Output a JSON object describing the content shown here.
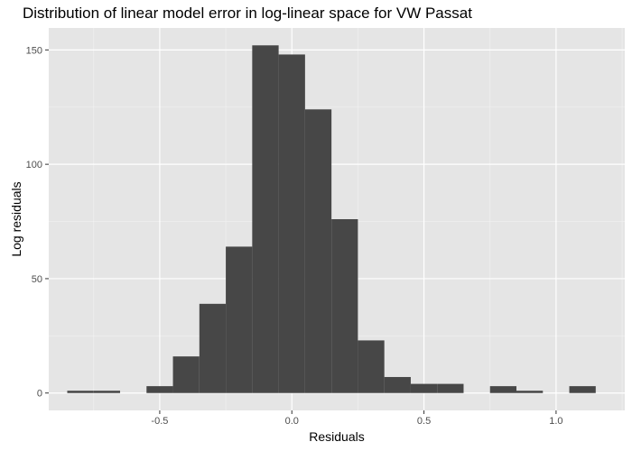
{
  "chart_data": {
    "type": "bar",
    "title": "Distribution of linear model error in log-linear space for VW Passat",
    "xlabel": "Residuals",
    "ylabel": "Log residuals",
    "xlim": [
      -0.92,
      1.26
    ],
    "ylim": [
      -7.6,
      159.6
    ],
    "x_ticks": [
      -0.5,
      0.0,
      0.5,
      1.0
    ],
    "x_tick_labels": [
      "-0.5",
      "0.0",
      "0.5",
      "1.0"
    ],
    "y_ticks": [
      0,
      50,
      100,
      150
    ],
    "y_tick_labels": [
      "0",
      "50",
      "100",
      "150"
    ],
    "grid": true,
    "bin_width": 0.1,
    "bins": [
      {
        "center": -0.8,
        "count": 1
      },
      {
        "center": -0.7,
        "count": 1
      },
      {
        "center": -0.6,
        "count": 0
      },
      {
        "center": -0.5,
        "count": 3
      },
      {
        "center": -0.4,
        "count": 16
      },
      {
        "center": -0.3,
        "count": 39
      },
      {
        "center": -0.2,
        "count": 64
      },
      {
        "center": -0.1,
        "count": 152
      },
      {
        "center": 0.0,
        "count": 148
      },
      {
        "center": 0.1,
        "count": 124
      },
      {
        "center": 0.2,
        "count": 76
      },
      {
        "center": 0.3,
        "count": 23
      },
      {
        "center": 0.4,
        "count": 7
      },
      {
        "center": 0.5,
        "count": 4
      },
      {
        "center": 0.6,
        "count": 4
      },
      {
        "center": 0.7,
        "count": 0
      },
      {
        "center": 0.8,
        "count": 3
      },
      {
        "center": 0.9,
        "count": 1
      },
      {
        "center": 1.0,
        "count": 0
      },
      {
        "center": 1.1,
        "count": 3
      }
    ],
    "colors": {
      "panel_background": "#e5e5e5",
      "grid_major": "#ffffff",
      "grid_minor": "#f2f2f2",
      "bar_fill": "#474747",
      "tick_mark": "#333333"
    }
  }
}
